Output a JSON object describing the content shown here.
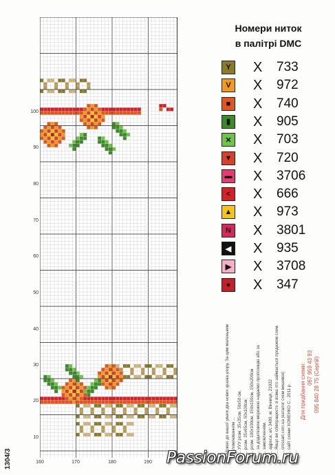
{
  "legend": {
    "title_line1": "Номери ниток",
    "title_line2": "в палітрі DMC",
    "times": "X",
    "items": [
      {
        "symbol": "Y",
        "color": "#8a7a2c",
        "code": "733"
      },
      {
        "symbol": "V",
        "color": "#f29a1e",
        "code": "972"
      },
      {
        "symbol": "■",
        "color": "#e2561d",
        "code": "740"
      },
      {
        "symbol": "▮",
        "color": "#3d8a2a",
        "code": "905"
      },
      {
        "symbol": "✕",
        "color": "#6fc24a",
        "code": "703"
      },
      {
        "symbol": "▼",
        "color": "#d8402b",
        "code": "720"
      },
      {
        "symbol": "▬",
        "color": "#e63a73",
        "code": "3706"
      },
      {
        "symbol": "<",
        "color": "#d61f26",
        "code": "666"
      },
      {
        "symbol": "▲",
        "color": "#f4c418",
        "code": "973"
      },
      {
        "symbol": "N",
        "color": "#d5285c",
        "code": "3801"
      },
      {
        "symbol": "◀",
        "color": "#111111",
        "code": "935"
      },
      {
        "symbol": "▶",
        "color": "#f7aec8",
        "code": "3708"
      },
      {
        "symbol": "●",
        "color": "#c4202a",
        "code": "347"
      }
    ]
  },
  "chart": {
    "y_ticks": [
      "100",
      "90",
      "80",
      "70",
      "60",
      "50",
      "40",
      "30",
      "20",
      "10"
    ],
    "x_ticks": [
      "160",
      "170",
      "180",
      "190"
    ]
  },
  "info": {
    "lines": [
      "Можно до вашої уваги два нових зразка узору. За цим маленьким",
      "заломлюванням ...",
      "... УУУ  розм. 35х35см, 50х50 см,",
      "... розм. 35х65см, 50х100см,",
      "... розм. 100х100см, 150х150см, 150х200см",
      "... за додатковою мережею надаємо пропозицію або за",
      "... замовленням.",
      "... адреса: а/с 3489, м. Вінниця, 21032",
      "... Якщо ви співпрацюєте зі всіма хто займається продажем схем.",
      "... crossart.com.ua (каталог схем вишивок)",
      "... сайт схеми ХОМЕНКО С., 2011 р.",
      "..."
    ],
    "phone_label": "Для придбання схеми:",
    "phone1": "067 959 43 93",
    "phone2": "095 840 28 75 (Сергій)"
  },
  "page_number": "1304/3",
  "watermark": "PassionForum.ru"
}
